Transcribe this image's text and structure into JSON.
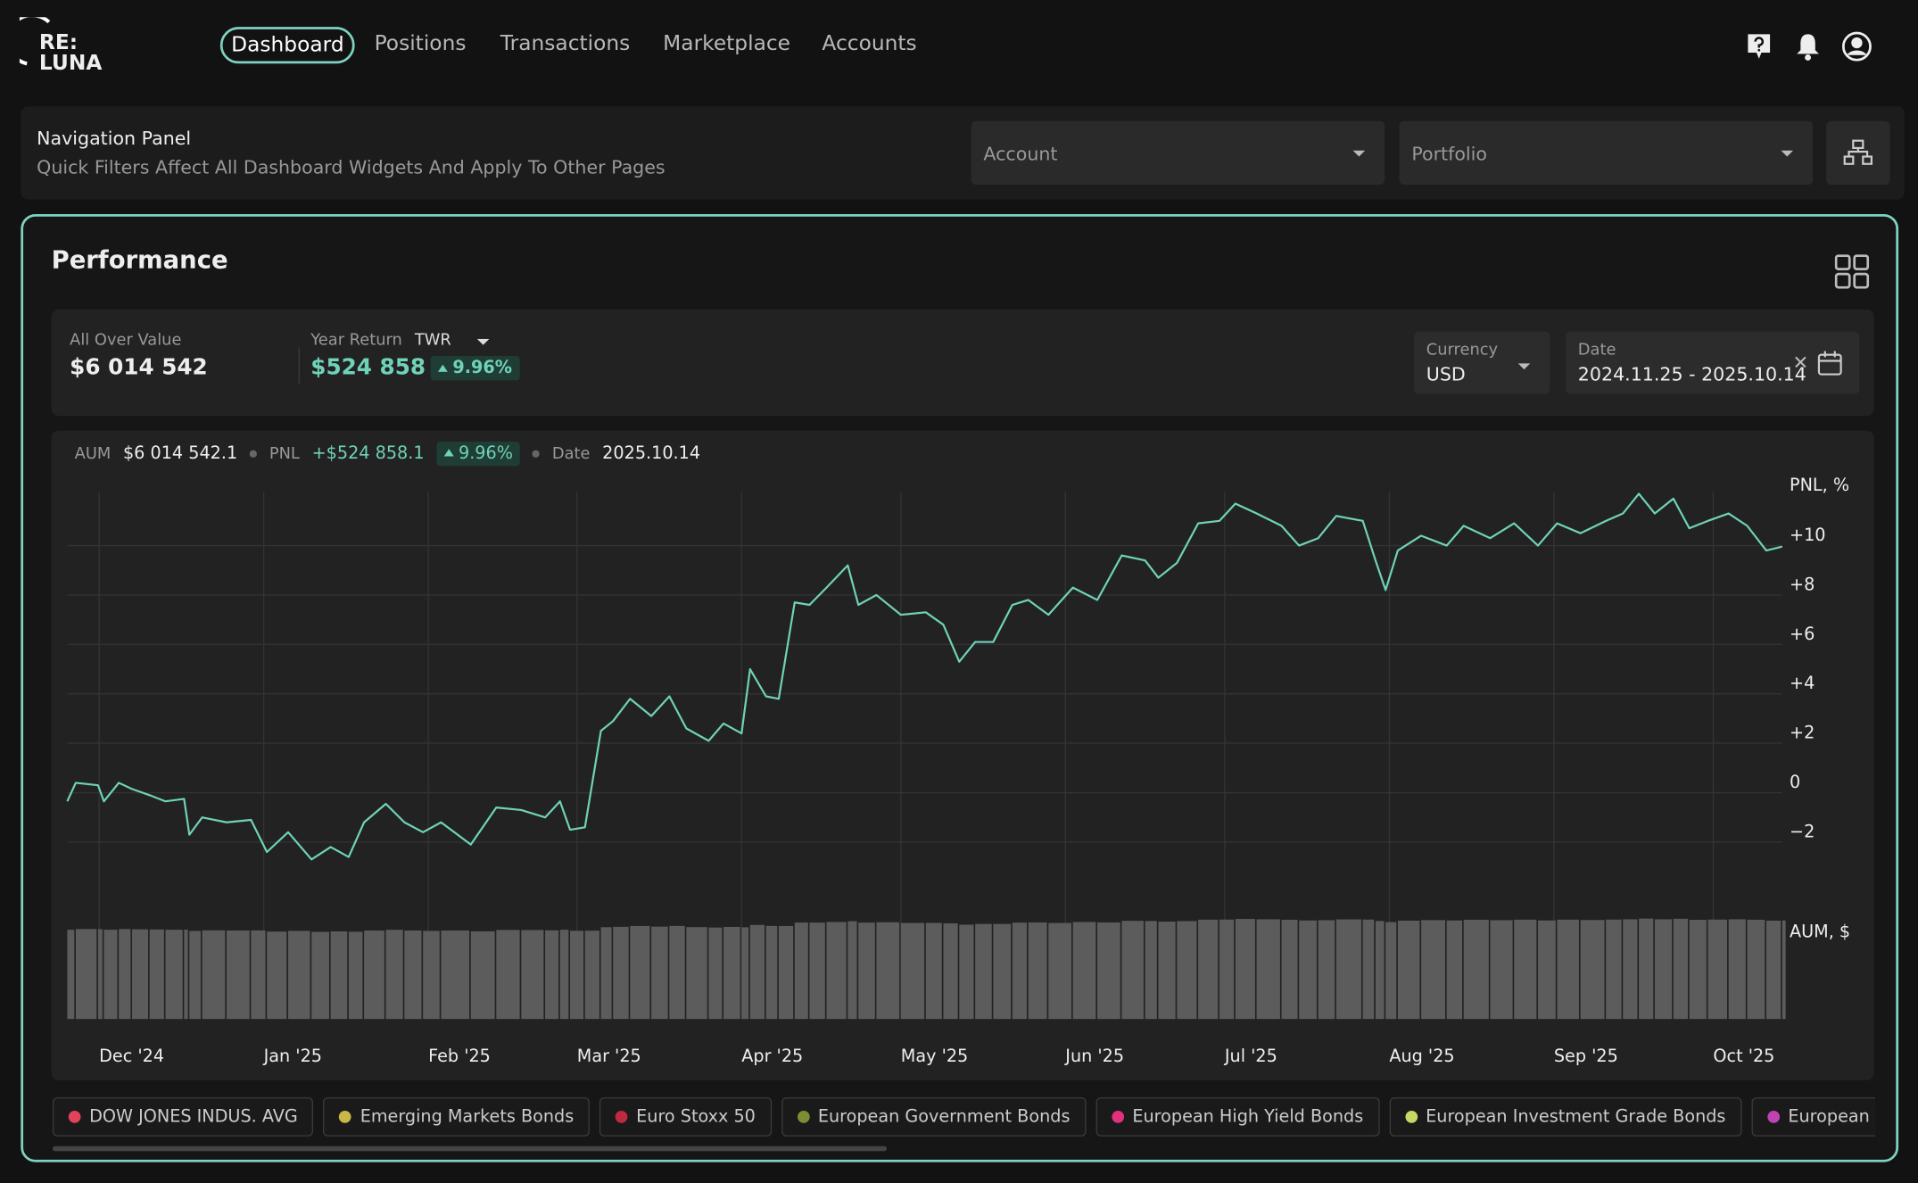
{
  "logo": {
    "line1": "RE:",
    "line2": "LUNA"
  },
  "menu": [
    "Dashboard",
    "Positions",
    "Transactions",
    "Marketplace",
    "Accounts"
  ],
  "filters": {
    "title": "Navigation Panel",
    "subtitle": "Quick Filters Affect All Dashboard Widgets And Apply To Other Pages",
    "account": "Account",
    "portfolio": "Portfolio"
  },
  "performance": {
    "title": "Performance",
    "all_over_value_label": "All Over Value",
    "all_over_value": "$6 014 542",
    "year_return_label": "Year Return",
    "method": "TWR",
    "year_return": "$524 858",
    "year_return_pct": "9.96%",
    "currency_label": "Currency",
    "currency": "USD",
    "date_label": "Date",
    "date_range": "2024.11.25 - 2025.10.14"
  },
  "tooltip": {
    "aum_label": "AUM",
    "aum": "$6 014 542.1",
    "pnl_label": "PNL",
    "pnl": "+$524 858.1",
    "pnl_pct": "9.96%",
    "date_label": "Date",
    "date": "2025.10.14"
  },
  "chart_data": {
    "type": "line",
    "ylabel": "PNL, %",
    "y2label": "AUM, $",
    "grid": true,
    "xlim": [
      0,
      323
    ],
    "xticks": [
      {
        "value": 6,
        "label": "Dec '24"
      },
      {
        "value": 37,
        "label": "Jan '25"
      },
      {
        "value": 68,
        "label": "Feb '25"
      },
      {
        "value": 96,
        "label": "Mar '25"
      },
      {
        "value": 127,
        "label": "Apr '25"
      },
      {
        "value": 157,
        "label": "May '25"
      },
      {
        "value": 188,
        "label": "Jun '25"
      },
      {
        "value": 218,
        "label": "Jul '25"
      },
      {
        "value": 249,
        "label": "Aug '25"
      },
      {
        "value": 280,
        "label": "Sep '25"
      },
      {
        "value": 310,
        "label": "Oct '25"
      }
    ],
    "ylim": [
      -3,
      12.5
    ],
    "yticks": [
      {
        "value": 10,
        "label": "+10"
      },
      {
        "value": 8,
        "label": "+8"
      },
      {
        "value": 6,
        "label": "+6"
      },
      {
        "value": 4,
        "label": "+4"
      },
      {
        "value": 2,
        "label": "+2"
      },
      0,
      {
        "value": -2,
        "label": "−2"
      }
    ],
    "y2lim": [
      0,
      6200000
    ],
    "x": [
      0,
      1.6,
      5.8,
      6.9,
      9.7,
      12.2,
      15.5,
      18.5,
      22,
      23,
      25.4,
      30,
      34.6,
      37.6,
      41.6,
      46,
      49.6,
      53,
      55.9,
      60,
      63.5,
      67,
      70.4,
      76,
      80.8,
      85.5,
      90,
      92.8,
      94.7,
      97.5,
      100.5,
      102.8,
      106,
      110,
      113.4,
      116.6,
      120.8,
      123.6,
      127,
      128.6,
      131.6,
      134,
      137,
      139.8,
      143,
      147,
      149,
      152.4,
      157,
      161.7,
      165,
      168,
      171,
      174.4,
      178,
      181,
      184.8,
      189.4,
      194,
      198.6,
      203,
      205.5,
      209,
      213,
      217,
      220,
      224,
      228.7,
      232,
      235.6,
      239,
      244,
      246.4,
      248.3,
      250.6,
      255,
      259.8,
      263,
      268,
      272.5,
      277,
      280.6,
      285,
      289.8,
      293,
      296,
      299,
      302.5,
      305.5,
      309,
      312.9,
      316.4,
      320,
      323
    ],
    "series": [
      {
        "type": "line",
        "color": "#6fd3b8",
        "values": [
          -0.35,
          0.4,
          0.3,
          -0.35,
          0.4,
          0.15,
          -0.1,
          -0.35,
          -0.25,
          -1.7,
          -1.0,
          -1.2,
          -1.1,
          -2.4,
          -1.6,
          -2.7,
          -2.2,
          -2.6,
          -1.2,
          -0.45,
          -1.2,
          -1.6,
          -1.2,
          -2.1,
          -0.6,
          -0.7,
          -1.0,
          -0.35,
          -1.5,
          -1.4,
          2.5,
          2.9,
          3.8,
          3.1,
          3.9,
          2.6,
          2.1,
          2.8,
          2.4,
          5.0,
          3.9,
          3.8,
          7.7,
          7.6,
          8.3,
          9.2,
          7.6,
          8.0,
          7.2,
          7.3,
          6.8,
          5.3,
          6.1,
          6.1,
          7.6,
          7.8,
          7.2,
          8.3,
          7.8,
          9.6,
          9.4,
          8.7,
          9.3,
          10.9,
          11.0,
          11.7,
          11.3,
          10.8,
          10.0,
          10.3,
          11.2,
          11.0,
          9.4,
          8.2,
          9.8,
          10.4,
          10.0,
          10.8,
          10.3,
          10.9,
          10.0,
          10.9,
          10.5,
          11.0,
          11.3,
          12.1,
          11.3,
          11.9,
          10.7,
          11.0,
          11.3,
          10.8,
          9.8,
          9.96
        ]
      },
      {
        "type": "bar",
        "axis": "y2",
        "color": "#5c5c5c",
        "values": [
          5451000,
          5492000,
          5486000,
          5451000,
          5492000,
          5478000,
          5465000,
          5451000,
          5456000,
          5377000,
          5415000,
          5404000,
          5410000,
          5339000,
          5382000,
          5322000,
          5350000,
          5328000,
          5404000,
          5445000,
          5404000,
          5382000,
          5404000,
          5355000,
          5437000,
          5432000,
          5415000,
          5451000,
          5388000,
          5393000,
          5607000,
          5629000,
          5678000,
          5640000,
          5683000,
          5612000,
          5585000,
          5623000,
          5601000,
          5744000,
          5683000,
          5678000,
          5891000,
          5886000,
          5924000,
          5973000,
          5886000,
          5908000,
          5864000,
          5869000,
          5842000,
          5760000,
          5804000,
          5804000,
          5886000,
          5897000,
          5864000,
          5924000,
          5897000,
          5995000,
          5984000,
          5946000,
          5979000,
          6066000,
          6072000,
          6110000,
          6088000,
          6061000,
          6017000,
          6033000,
          6083000,
          6072000,
          5984000,
          5919000,
          6006000,
          6039000,
          6017000,
          6061000,
          6033000,
          6066000,
          6017000,
          6066000,
          6044000,
          6072000,
          6088000,
          6132000,
          6088000,
          6121000,
          6055000,
          6072000,
          6088000,
          6061000,
          6006000,
          6014542.1
        ]
      }
    ]
  },
  "legend": [
    {
      "name": "DOW JONES INDUS. AVG",
      "color": "#e0435a"
    },
    {
      "name": "Emerging Markets Bonds",
      "color": "#c9b846"
    },
    {
      "name": "Euro Stoxx 50",
      "color": "#c02a40"
    },
    {
      "name": "European Government Bonds",
      "color": "#7c8e32"
    },
    {
      "name": "European High Yield Bonds",
      "color": "#e2317c"
    },
    {
      "name": "European Investment Grade Bonds",
      "color": "#c9d862"
    },
    {
      "name": "European Investment",
      "color": "#c043b4"
    }
  ]
}
